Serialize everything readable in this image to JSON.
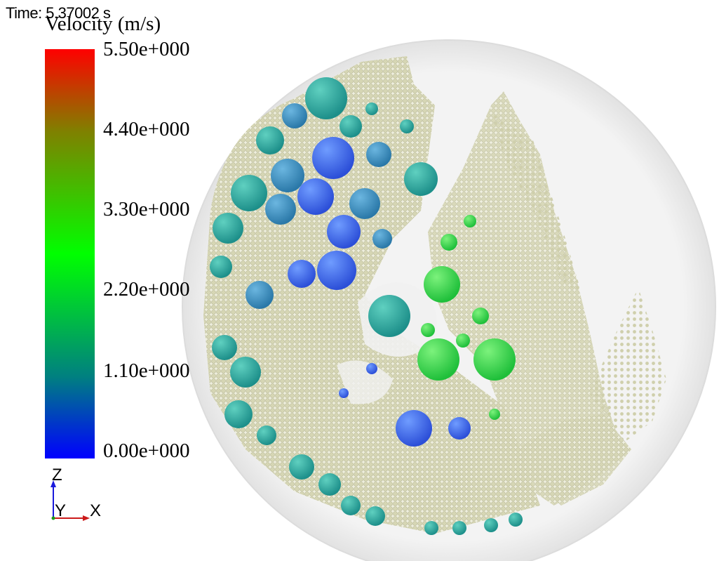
{
  "time_label": "Time: 5.37002 s",
  "legend": {
    "title": "Velocity (m/s)",
    "ticks": [
      "5.50e+000",
      "4.40e+000",
      "3.30e+000",
      "2.20e+000",
      "1.10e+000",
      "0.00e+000"
    ],
    "range": [
      0,
      5.5
    ],
    "colors": {
      "max": "#ff0000",
      "upper": "#808000",
      "mid": "#00ff00",
      "lower": "#008080",
      "min": "#0000ff"
    }
  },
  "axes": {
    "z": "Z",
    "y": "Y",
    "x": "X"
  },
  "scene": {
    "particle_color": "#d8d8b8",
    "drum_color": "#e6e6e6"
  }
}
